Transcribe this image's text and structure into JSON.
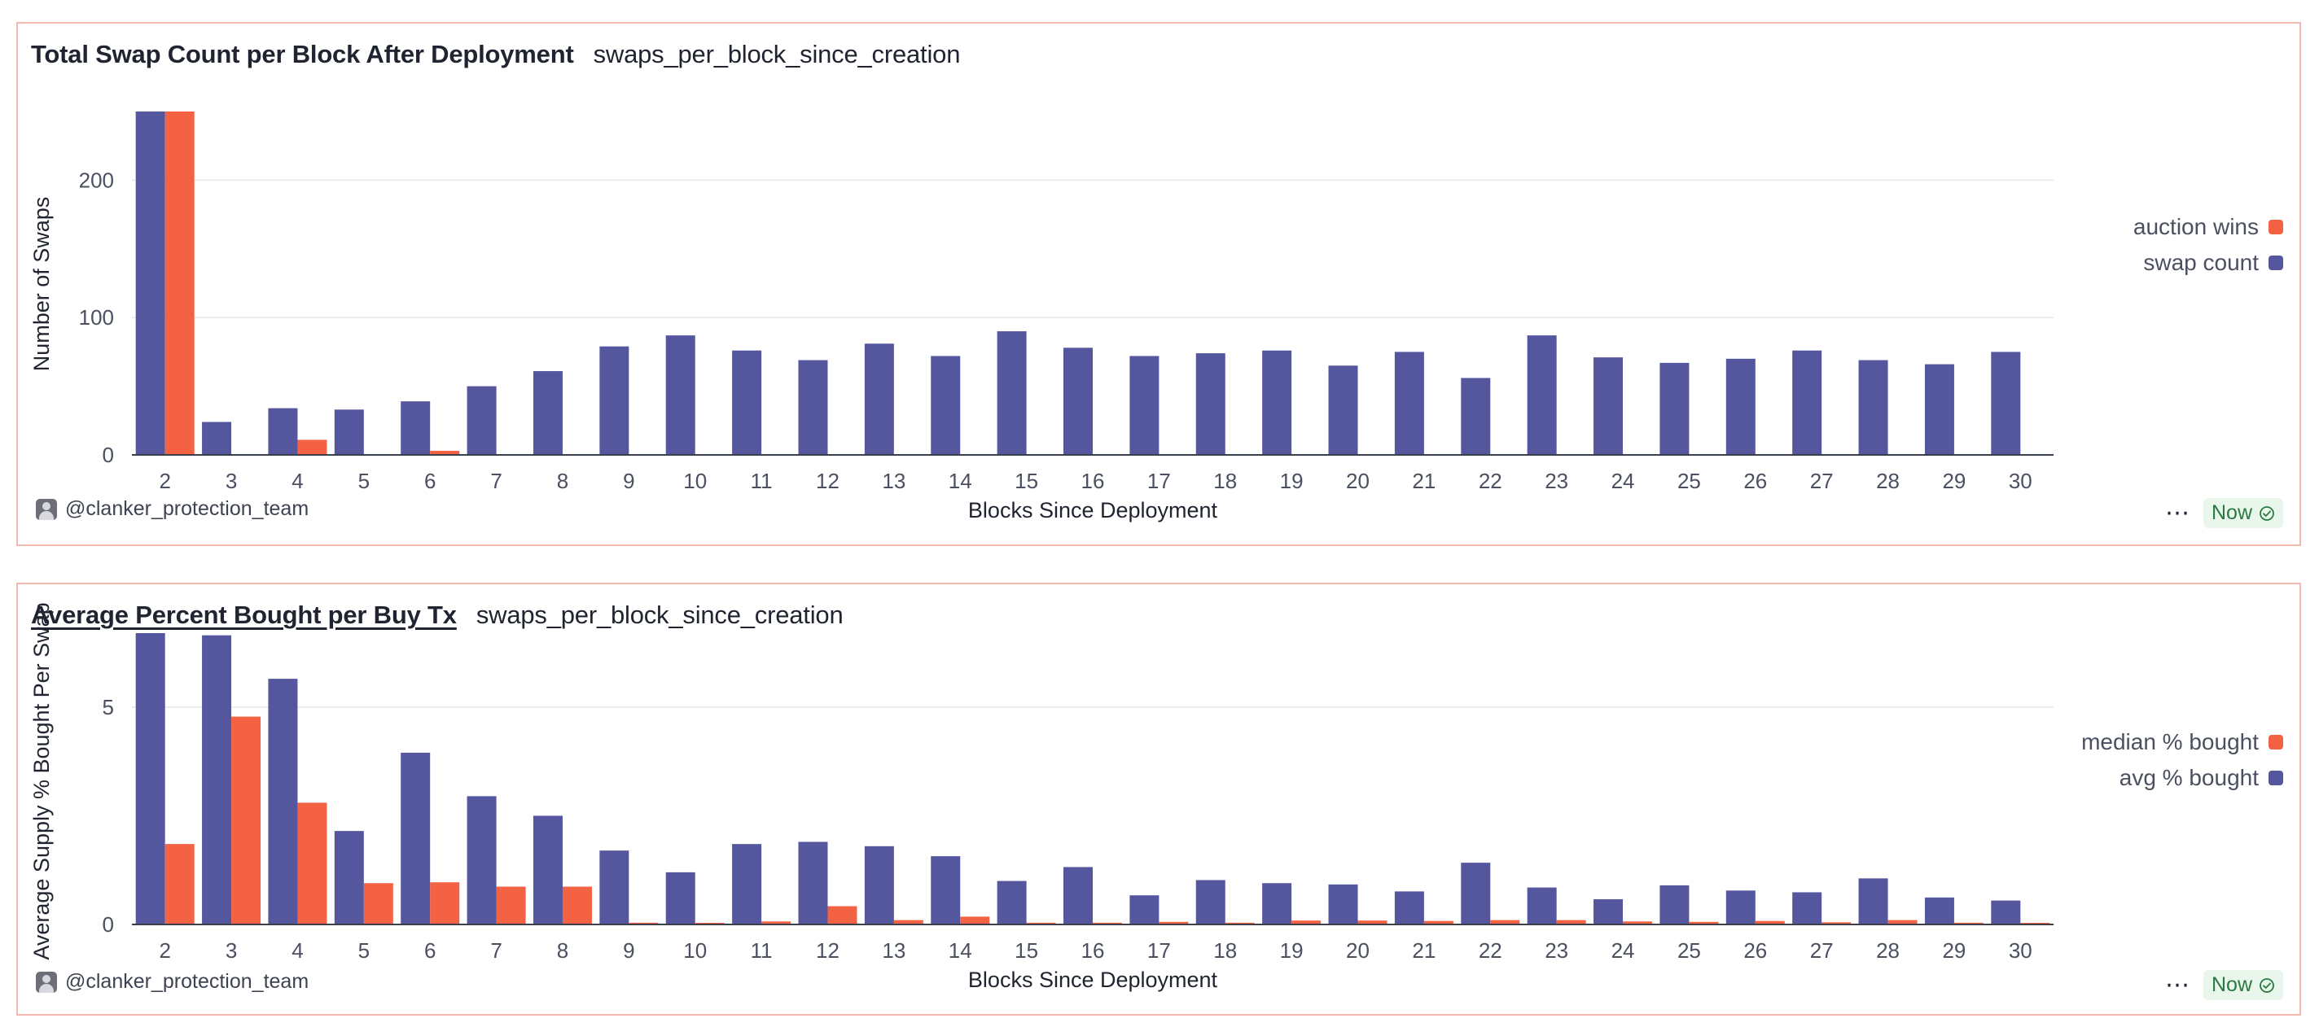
{
  "chart_data": [
    {
      "type": "bar",
      "title": "Total Swap Count per Block After Deployment",
      "query": "swaps_per_block_since_creation",
      "xlabel": "Blocks Since Deployment",
      "ylabel": "Number of Swaps",
      "ylim": [
        0,
        250
      ],
      "yticks": [
        0,
        100,
        200
      ],
      "categories": [
        "2",
        "3",
        "4",
        "5",
        "6",
        "7",
        "8",
        "9",
        "10",
        "11",
        "12",
        "13",
        "14",
        "15",
        "16",
        "17",
        "18",
        "19",
        "20",
        "21",
        "22",
        "23",
        "24",
        "25",
        "26",
        "27",
        "28",
        "29",
        "30"
      ],
      "series": [
        {
          "name": "swap count",
          "color": "#55579e",
          "values": [
            250,
            24,
            34,
            33,
            39,
            50,
            61,
            79,
            87,
            76,
            69,
            81,
            72,
            90,
            78,
            72,
            74,
            76,
            65,
            75,
            56,
            87,
            71,
            67,
            70,
            76,
            69,
            66,
            75
          ]
        },
        {
          "name": "auction wins",
          "color": "#f36243",
          "values": [
            250,
            0,
            11,
            0,
            3,
            0,
            0,
            0,
            0,
            0,
            0,
            0,
            0,
            0,
            0,
            0,
            0,
            0,
            0,
            0,
            0,
            0,
            0,
            0,
            0,
            0,
            0,
            0,
            0
          ]
        }
      ],
      "legend": [
        {
          "name": "auction wins",
          "color": "#f36243"
        },
        {
          "name": "swap count",
          "color": "#55579e"
        }
      ]
    },
    {
      "type": "bar",
      "title": "Average Percent Bought per Buy Tx",
      "query": "swaps_per_block_since_creation",
      "xlabel": "Blocks Since Deployment",
      "ylabel": "Average Supply % Bought Per Swap",
      "ylim": [
        0,
        6.7
      ],
      "yticks": [
        0,
        5
      ],
      "categories": [
        "2",
        "3",
        "4",
        "5",
        "6",
        "7",
        "8",
        "9",
        "10",
        "11",
        "12",
        "13",
        "14",
        "15",
        "16",
        "17",
        "18",
        "19",
        "20",
        "21",
        "22",
        "23",
        "24",
        "25",
        "26",
        "27",
        "28",
        "29",
        "30"
      ],
      "series": [
        {
          "name": "avg % bought",
          "color": "#55579e",
          "values": [
            6.7,
            6.65,
            5.65,
            2.15,
            3.95,
            2.95,
            2.5,
            1.7,
            1.2,
            1.85,
            1.9,
            1.8,
            1.57,
            1.0,
            1.32,
            0.67,
            1.02,
            0.95,
            0.92,
            0.76,
            1.42,
            0.85,
            0.58,
            0.9,
            0.78,
            0.74,
            1.06,
            0.62,
            0.55
          ]
        },
        {
          "name": "median % bought",
          "color": "#f36243",
          "values": [
            1.85,
            4.78,
            2.8,
            0.95,
            0.97,
            0.87,
            0.87,
            0.04,
            0.02,
            0.07,
            0.42,
            0.1,
            0.18,
            0.04,
            0.04,
            0.06,
            0.04,
            0.09,
            0.09,
            0.08,
            0.1,
            0.1,
            0.07,
            0.06,
            0.08,
            0.05,
            0.1,
            0.04,
            0.02
          ]
        }
      ],
      "legend": [
        {
          "name": "median % bought",
          "color": "#f36243"
        },
        {
          "name": "avg % bought",
          "color": "#55579e"
        }
      ]
    }
  ],
  "panels": [
    {
      "title": "Total Swap Count per Block After Deployment",
      "query": "swaps_per_block_since_creation",
      "author": "@clanker_protection_team",
      "status": "Now",
      "more_icon": "more-icon",
      "status_icon": "check-circle-icon"
    },
    {
      "title": "Average Percent Bought per Buy Tx",
      "query": "swaps_per_block_since_creation",
      "author": "@clanker_protection_team",
      "status": "Now",
      "more_icon": "more-icon",
      "status_icon": "check-circle-icon"
    }
  ]
}
